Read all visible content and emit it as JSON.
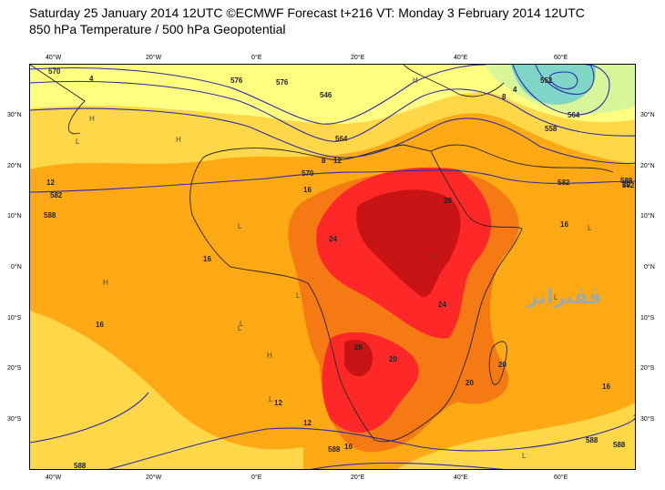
{
  "header": {
    "line1": "Saturday 25 January 2014 12UTC ©ECMWF Forecast t+216 VT: Monday 3 February 2014 12UTC",
    "line2": "850 hPa Temperature / 500 hPa Geopotential"
  },
  "axes": {
    "lon_labels": [
      "40°W",
      "20°W",
      "0°E",
      "20°E",
      "40°E",
      "60°E"
    ],
    "lat_labels_left": [
      "30°N",
      "20°N",
      "10°N",
      "0°N",
      "10°S",
      "20°S",
      "30°S"
    ],
    "lat_labels_right": [
      "30°N",
      "20°N",
      "10°N",
      "0°N",
      "10°S",
      "20°S",
      "30°S"
    ]
  },
  "colors": {
    "temp_0_4": "#7fd6c6",
    "temp_4_8": "#d9f59a",
    "temp_8_12": "#ffff80",
    "temp_12_16": "#ffd84a",
    "temp_16_20": "#ffaa14",
    "temp_20_24": "#f57a14",
    "temp_24_28": "#ff2828",
    "temp_28_32": "#c81414",
    "contour": "#2b2bab",
    "coast": "#222222"
  },
  "geopotential_labels": [
    "570",
    "576",
    "546",
    "552",
    "558",
    "564",
    "570",
    "582",
    "582",
    "588",
    "588",
    "588",
    "588",
    "588",
    "588",
    "582",
    "576",
    "564"
  ],
  "temperature_labels": [
    "4",
    "4",
    "8",
    "8",
    "12",
    "12",
    "16",
    "16",
    "16",
    "16",
    "16",
    "16",
    "12",
    "24",
    "24",
    "28",
    "28",
    "20",
    "20",
    "20",
    "16",
    "12",
    "20"
  ],
  "pressure_centers": [
    "H",
    "H",
    "H",
    "H",
    "H",
    "L",
    "L",
    "L",
    "L",
    "L",
    "L",
    "L",
    "L",
    "L",
    "L"
  ],
  "watermark": "ڤڤبرابر"
}
